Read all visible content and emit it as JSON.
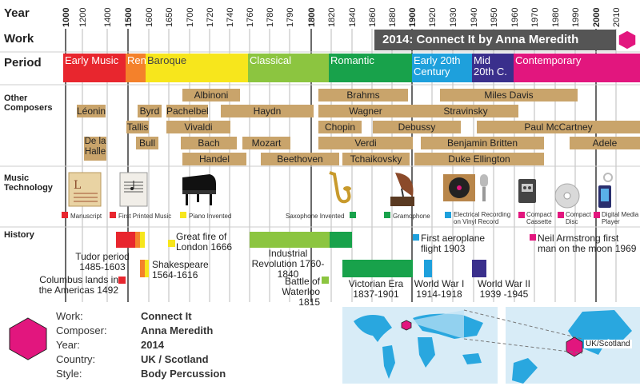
{
  "labels": {
    "year": "Year",
    "work": "Work",
    "period": "Period",
    "other_composers": "Other Composers",
    "music_technology": "Music Technology",
    "history": "History"
  },
  "years": [
    "1000",
    "1200",
    "1400",
    "1500",
    "1600",
    "1650",
    "1700",
    "1720",
    "1740",
    "1760",
    "1780",
    "1790",
    "1800",
    "1820",
    "1840",
    "1860",
    "1880",
    "1900",
    "1920",
    "1930",
    "1940",
    "1950",
    "1960",
    "1970",
    "1980",
    "1990",
    "2000",
    "2010"
  ],
  "work_banner": "2014:  Connect It by Anna Meredith",
  "periods": [
    {
      "name": "Early Music",
      "color": "#e8262e"
    },
    {
      "name": "Ren.",
      "color": "#f4812b"
    },
    {
      "name": "Baroque",
      "color": "#f7e61c"
    },
    {
      "name": "Classical",
      "color": "#8cc540"
    },
    {
      "name": "Romantic",
      "color": "#18a24b"
    },
    {
      "name": "Early 20th Century",
      "color": "#1ea0dc"
    },
    {
      "name": "Mid 20th C.",
      "color": "#3a2f8c"
    },
    {
      "name": "Contemporary",
      "color": "#e2167e"
    }
  ],
  "composers": [
    "Albinoni",
    "Brahms",
    "Miles Davis",
    "Léonin",
    "Byrd",
    "Pachelbel",
    "Haydn",
    "Wagner",
    "Stravinsky",
    "Tallis",
    "Vivaldi",
    "Chopin",
    "Debussy",
    "Paul McCartney",
    "De la Halle",
    "Bull",
    "Bach",
    "Mozart",
    "Verdi",
    "Benjamin Britten",
    "Adele",
    "Handel",
    "Beethoven",
    "Tchaikovsky",
    "Duke Ellington"
  ],
  "technology": [
    "Manuscript",
    "First Printed Music",
    "Piano Invented",
    "Saxophone Invented",
    "Gramophone",
    "Electrical Recording on Vinyl Record",
    "Compact Cassette",
    "Compact Disc",
    "Digital Media Player"
  ],
  "history": [
    "Tudor period 1485-1603",
    "Columbus lands in the Americas 1492",
    "Great fire of London 1666",
    "Shakespeare 1564-1616",
    "Industrial Revolution 1760-1840",
    "Battle of Waterloo 1815",
    "Victorian Era 1837-1901",
    "First aeroplane flight 1903",
    "World War I 1914-1918",
    "World War II 1939 -1945",
    "Neil Armstrong first man on the moon 1969"
  ],
  "info": {
    "work_key": "Work:",
    "work_val": "Connect It",
    "composer_key": "Composer:",
    "composer_val": "Anna Meredith",
    "year_key": "Year:",
    "year_val": "2014",
    "country_key": "Country:",
    "country_val": "UK / Scotland",
    "style_key": "Style:",
    "style_val": "Body Percussion"
  },
  "map_label": "UK/Scotland",
  "colors": {
    "accent": "#e2167e",
    "composer_bar": "#c9a46b",
    "banner": "#555555"
  }
}
